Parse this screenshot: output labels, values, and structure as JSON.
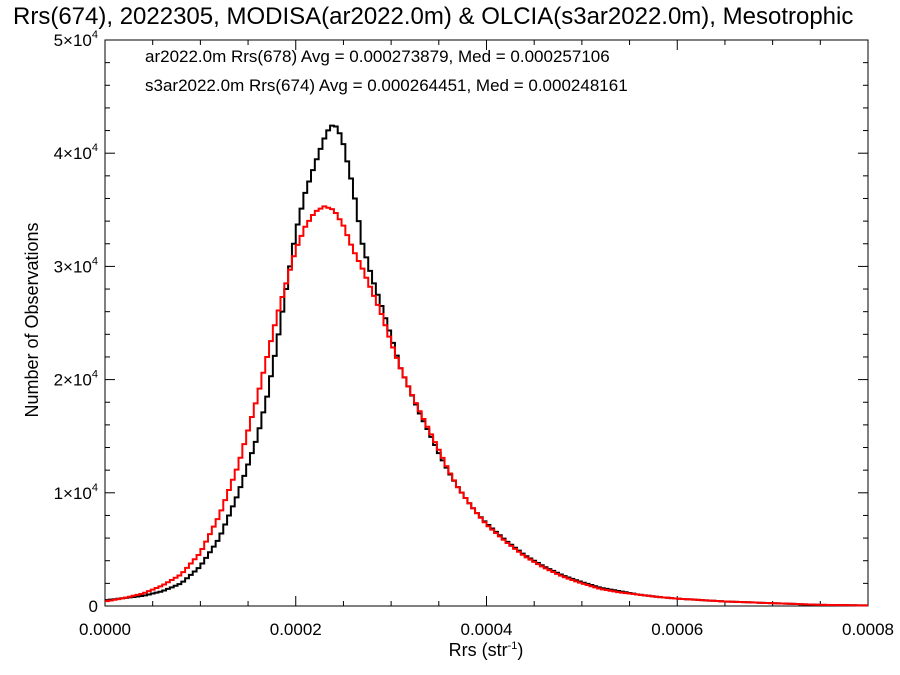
{
  "chart_data": {
    "type": "line",
    "title": "Rrs(674), 2022305, MODISA(ar2022.0m) & OLCIA(s3ar2022.0m), Mesotrophic",
    "xlabel": {
      "base": "Rrs (str",
      "sup": "-1",
      "close": ")"
    },
    "ylabel": "Number of Observations",
    "xlim": [
      0,
      0.0008
    ],
    "ylim": [
      0,
      50000
    ],
    "x_ticks": [
      {
        "value": 0,
        "label": "0.0000"
      },
      {
        "value": 0.0002,
        "label": "0.0002"
      },
      {
        "value": 0.0004,
        "label": "0.0004"
      },
      {
        "value": 0.0006,
        "label": "0.0006"
      },
      {
        "value": 0.0008,
        "label": "0.0008"
      }
    ],
    "y_ticks": [
      {
        "value": 0,
        "mant": "0",
        "exp": ""
      },
      {
        "value": 10000,
        "mant": "1×10",
        "exp": "4"
      },
      {
        "value": 20000,
        "mant": "2×10",
        "exp": "4"
      },
      {
        "value": 30000,
        "mant": "3×10",
        "exp": "4"
      },
      {
        "value": 40000,
        "mant": "4×10",
        "exp": "4"
      },
      {
        "value": 50000,
        "mant": "5×10",
        "exp": "4"
      }
    ],
    "legend_position": "top-left",
    "grid": false,
    "series": [
      {
        "name": "ar2022.0m Rrs(678) Avg = 0.000273879, Med = 0.000257106",
        "color": "#000000",
        "step": true,
        "points": [
          [
            0,
            500
          ],
          [
            2e-05,
            700
          ],
          [
            4e-05,
            900
          ],
          [
            6e-05,
            1300
          ],
          [
            8e-05,
            2000
          ],
          [
            0.0001,
            3500
          ],
          [
            0.00012,
            6000
          ],
          [
            0.00014,
            10000
          ],
          [
            0.00016,
            15000
          ],
          [
            0.00017,
            18500
          ],
          [
            0.00018,
            23000
          ],
          [
            0.00019,
            28000
          ],
          [
            0.0002,
            33000
          ],
          [
            0.00021,
            36500
          ],
          [
            0.00022,
            39000
          ],
          [
            0.00023,
            41300
          ],
          [
            0.000235,
            42200
          ],
          [
            0.00024,
            42600
          ],
          [
            0.000245,
            42000
          ],
          [
            0.00025,
            40800
          ],
          [
            0.00026,
            37000
          ],
          [
            0.00027,
            32000
          ],
          [
            0.00028,
            29000
          ],
          [
            0.00029,
            26500
          ],
          [
            0.0003,
            23800
          ],
          [
            0.00031,
            21000
          ],
          [
            0.00032,
            19000
          ],
          [
            0.00033,
            17000
          ],
          [
            0.00034,
            15300
          ],
          [
            0.00035,
            13500
          ],
          [
            0.00036,
            11900
          ],
          [
            0.00037,
            10500
          ],
          [
            0.00038,
            9300
          ],
          [
            0.00039,
            8200
          ],
          [
            0.0004,
            7300
          ],
          [
            0.00042,
            5800
          ],
          [
            0.00044,
            4500
          ],
          [
            0.00046,
            3500
          ],
          [
            0.00048,
            2700
          ],
          [
            0.0005,
            2100
          ],
          [
            0.00052,
            1600
          ],
          [
            0.00054,
            1300
          ],
          [
            0.00056,
            1000
          ],
          [
            0.00058,
            800
          ],
          [
            0.0006,
            650
          ],
          [
            0.00065,
            400
          ],
          [
            0.0007,
            250
          ],
          [
            0.00075,
            100
          ],
          [
            0.0008,
            50
          ]
        ]
      },
      {
        "name": "s3ar2022.0m Rrs(674) Avg = 0.000264451, Med = 0.000248161",
        "color": "#ff0000",
        "step": true,
        "points": [
          [
            0,
            400
          ],
          [
            2e-05,
            700
          ],
          [
            4e-05,
            1100
          ],
          [
            6e-05,
            1800
          ],
          [
            8e-05,
            2800
          ],
          [
            0.0001,
            4700
          ],
          [
            0.00012,
            8000
          ],
          [
            0.00014,
            12500
          ],
          [
            0.00015,
            15500
          ],
          [
            0.00016,
            18500
          ],
          [
            0.00017,
            22000
          ],
          [
            0.00018,
            25500
          ],
          [
            0.00019,
            28500
          ],
          [
            0.0002,
            31500
          ],
          [
            0.00021,
            33500
          ],
          [
            0.00022,
            34800
          ],
          [
            0.00023,
            35300
          ],
          [
            0.00024,
            35000
          ],
          [
            0.00025,
            33600
          ],
          [
            0.00026,
            31500
          ],
          [
            0.00027,
            29800
          ],
          [
            0.00028,
            27800
          ],
          [
            0.00029,
            25800
          ],
          [
            0.0003,
            23300
          ],
          [
            0.00031,
            21000
          ],
          [
            0.00032,
            19000
          ],
          [
            0.00033,
            17200
          ],
          [
            0.00034,
            15500
          ],
          [
            0.00035,
            13800
          ],
          [
            0.00036,
            12000
          ],
          [
            0.00037,
            10500
          ],
          [
            0.00038,
            9300
          ],
          [
            0.00039,
            8200
          ],
          [
            0.0004,
            7200
          ],
          [
            0.00042,
            5700
          ],
          [
            0.00044,
            4400
          ],
          [
            0.00046,
            3400
          ],
          [
            0.00048,
            2600
          ],
          [
            0.0005,
            2000
          ],
          [
            0.00052,
            1500
          ],
          [
            0.00054,
            1200
          ],
          [
            0.00056,
            1000
          ],
          [
            0.00058,
            800
          ],
          [
            0.0006,
            650
          ],
          [
            0.00065,
            400
          ],
          [
            0.0007,
            250
          ],
          [
            0.00075,
            100
          ],
          [
            0.0008,
            50
          ]
        ]
      }
    ]
  }
}
